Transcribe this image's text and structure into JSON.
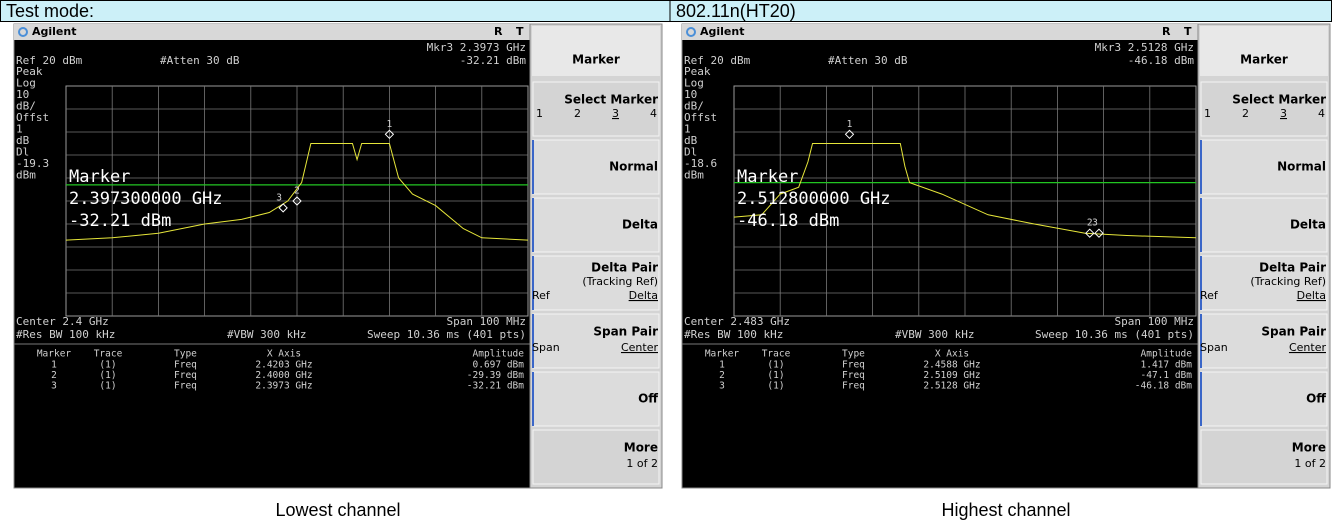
{
  "header": {
    "mode_label": "Test mode:",
    "mode": "802.11n(HT20)"
  },
  "panels": [
    {
      "brand": "Agilent",
      "status": [
        "R",
        "T"
      ],
      "marker_readout": "Mkr3  2.3973 GHz",
      "marker_amp": "-32.21 dBm",
      "ref": "Ref 20 dBm",
      "atten": "#Atten 30 dB",
      "scale_labels": [
        "Peak",
        "Log",
        "10",
        "dB/",
        "Offst",
        "1",
        "dB",
        "Dl",
        "-19.3",
        "dBm"
      ],
      "overlay": [
        "Marker",
        "2.397300000 GHz",
        "-32.21 dBm"
      ],
      "center": "Center 2.4 GHz",
      "span": "Span 100 MHz",
      "rbw": "#Res BW 100 kHz",
      "vbw": "#VBW 300 kHz",
      "sweep": "Sweep 10.36 ms (401 pts)",
      "table": {
        "columns": [
          "Marker",
          "Trace",
          "Type",
          "X Axis",
          "Amplitude"
        ],
        "rows": [
          [
            "1",
            "(1)",
            "Freq",
            "2.4203 GHz",
            "0.697 dBm"
          ],
          [
            "2",
            "(1)",
            "Freq",
            "2.4000 GHz",
            "-29.39 dBm"
          ],
          [
            "3",
            "(1)",
            "Freq",
            "2.3973 GHz",
            "-32.21 dBm"
          ]
        ]
      },
      "softkeys": {
        "title": "Marker",
        "select": "Select Marker",
        "select_options": [
          "1",
          "2",
          "3",
          "4"
        ],
        "normal": "Normal",
        "delta": "Delta",
        "delta_pair": "Delta Pair",
        "tracking": "(Tracking Ref)",
        "ref": "Ref",
        "delta_sub": "Delta",
        "span_pair": "Span Pair",
        "span": "Span",
        "center": "Center",
        "off": "Off",
        "more": "More",
        "page": "1 of 2"
      },
      "caption": "Lowest channel"
    },
    {
      "brand": "Agilent",
      "status": [
        "R",
        "T"
      ],
      "marker_readout": "Mkr3  2.5128 GHz",
      "marker_amp": "-46.18 dBm",
      "ref": "Ref 20 dBm",
      "atten": "#Atten 30 dB",
      "scale_labels": [
        "Peak",
        "Log",
        "10",
        "dB/",
        "Offst",
        "1",
        "dB",
        "Dl",
        "-18.6",
        "dBm"
      ],
      "overlay": [
        "Marker",
        "2.512800000 GHz",
        "-46.18 dBm"
      ],
      "center": "Center 2.483 GHz",
      "span": "Span 100 MHz",
      "rbw": "#Res BW 100 kHz",
      "vbw": "#VBW 300 kHz",
      "sweep": "Sweep 10.36 ms (401 pts)",
      "table": {
        "columns": [
          "Marker",
          "Trace",
          "Type",
          "X Axis",
          "Amplitude"
        ],
        "rows": [
          [
            "1",
            "(1)",
            "Freq",
            "2.4588 GHz",
            "1.417 dBm"
          ],
          [
            "2",
            "(1)",
            "Freq",
            "2.5109 GHz",
            "-47.1 dBm"
          ],
          [
            "3",
            "(1)",
            "Freq",
            "2.5128 GHz",
            "-46.18 dBm"
          ]
        ]
      },
      "softkeys": {
        "title": "Marker",
        "select": "Select Marker",
        "select_options": [
          "1",
          "2",
          "3",
          "4"
        ],
        "normal": "Normal",
        "delta": "Delta",
        "delta_pair": "Delta Pair",
        "tracking": "(Tracking Ref)",
        "ref": "Ref",
        "delta_sub": "Delta",
        "span_pair": "Span Pair",
        "span": "Span",
        "center": "Center",
        "off": "Off",
        "more": "More",
        "page": "1 of 2"
      },
      "caption": "Highest channel"
    }
  ]
}
